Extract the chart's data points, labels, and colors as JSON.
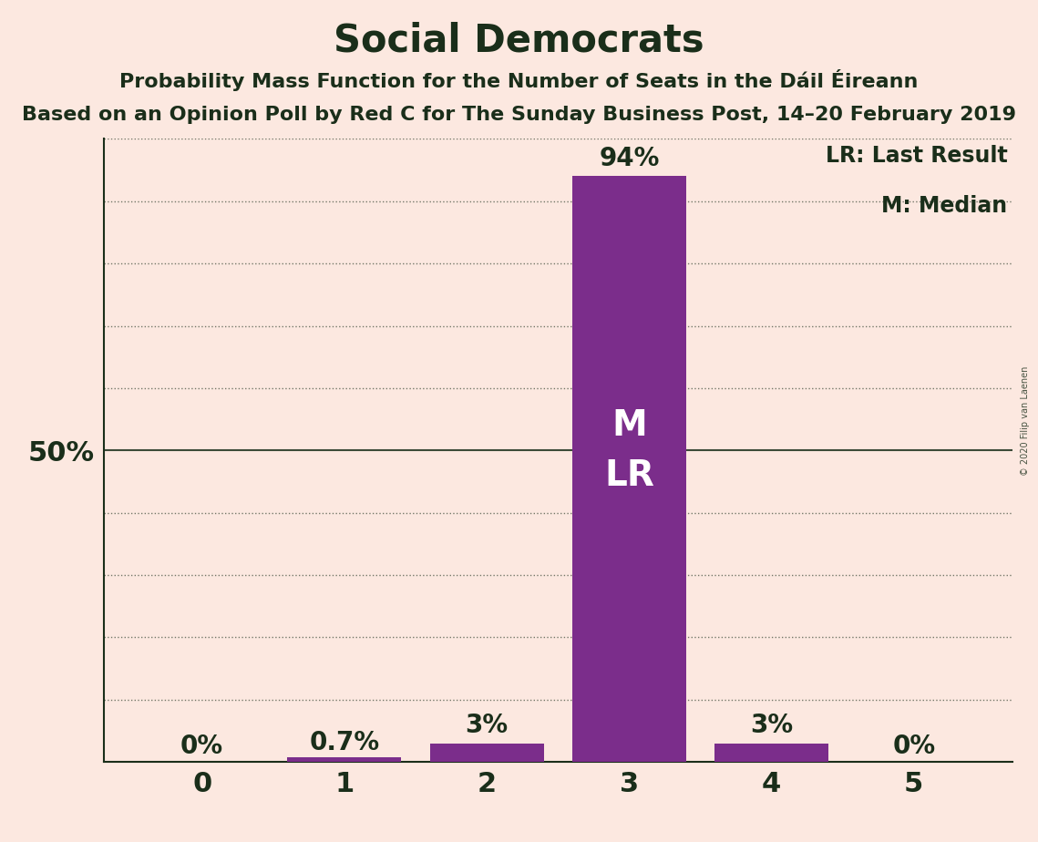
{
  "title": "Social Democrats",
  "subtitle1": "Probability Mass Function for the Number of Seats in the Dáil Éireann",
  "subtitle2": "Based on an Opinion Poll by Red C for The Sunday Business Post, 14–20 February 2019",
  "watermark": "© 2020 Filip van Laenen",
  "categories": [
    0,
    1,
    2,
    3,
    4,
    5
  ],
  "values": [
    0.0,
    0.007,
    0.03,
    0.94,
    0.03,
    0.0
  ],
  "labels": [
    "0%",
    "0.7%",
    "3%",
    "94%",
    "3%",
    "0%"
  ],
  "bar_color": "#7b2d8b",
  "background_color": "#fce8e0",
  "text_color": "#1a2e1a",
  "legend_lr": "LR: Last Result",
  "legend_m": "M: Median",
  "median_bar": 3,
  "last_result_bar": 3,
  "ylim": [
    0,
    1.0
  ],
  "grid_ticks": [
    0.1,
    0.2,
    0.3,
    0.4,
    0.6,
    0.7,
    0.8,
    0.9,
    1.0
  ],
  "solid_line_at": 0.5,
  "grid_color": "#1a2e1a",
  "title_fontsize": 30,
  "subtitle_fontsize": 16,
  "tick_fontsize": 22,
  "label_fontsize": 20,
  "annotation_fontsize": 28,
  "legend_fontsize": 17
}
